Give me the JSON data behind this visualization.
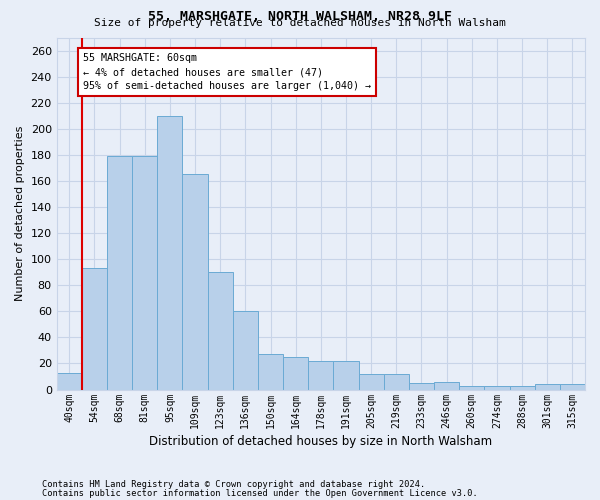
{
  "title1": "55, MARSHGATE, NORTH WALSHAM, NR28 9LF",
  "title2": "Size of property relative to detached houses in North Walsham",
  "xlabel": "Distribution of detached houses by size in North Walsham",
  "ylabel": "Number of detached properties",
  "categories": [
    "40sqm",
    "54sqm",
    "68sqm",
    "81sqm",
    "95sqm",
    "109sqm",
    "123sqm",
    "136sqm",
    "150sqm",
    "164sqm",
    "178sqm",
    "191sqm",
    "205sqm",
    "219sqm",
    "233sqm",
    "246sqm",
    "260sqm",
    "274sqm",
    "288sqm",
    "301sqm",
    "315sqm"
  ],
  "values": [
    13,
    93,
    179,
    179,
    210,
    165,
    90,
    60,
    27,
    25,
    22,
    22,
    12,
    12,
    5,
    6,
    3,
    3,
    3,
    4,
    4
  ],
  "bar_color": "#b8d0ea",
  "bar_edge_color": "#6aaad4",
  "red_line_x": 0.5,
  "red_line_color": "#dd0000",
  "annotation_text": "55 MARSHGATE: 60sqm\n← 4% of detached houses are smaller (47)\n95% of semi-detached houses are larger (1,040) →",
  "annotation_box_color": "#ffffff",
  "annotation_box_edge_color": "#cc0000",
  "ylim": [
    0,
    270
  ],
  "yticks": [
    0,
    20,
    40,
    60,
    80,
    100,
    120,
    140,
    160,
    180,
    200,
    220,
    240,
    260
  ],
  "grid_color": "#c8d4e8",
  "bg_color": "#e8eef8",
  "footnote1": "Contains HM Land Registry data © Crown copyright and database right 2024.",
  "footnote2": "Contains public sector information licensed under the Open Government Licence v3.0."
}
